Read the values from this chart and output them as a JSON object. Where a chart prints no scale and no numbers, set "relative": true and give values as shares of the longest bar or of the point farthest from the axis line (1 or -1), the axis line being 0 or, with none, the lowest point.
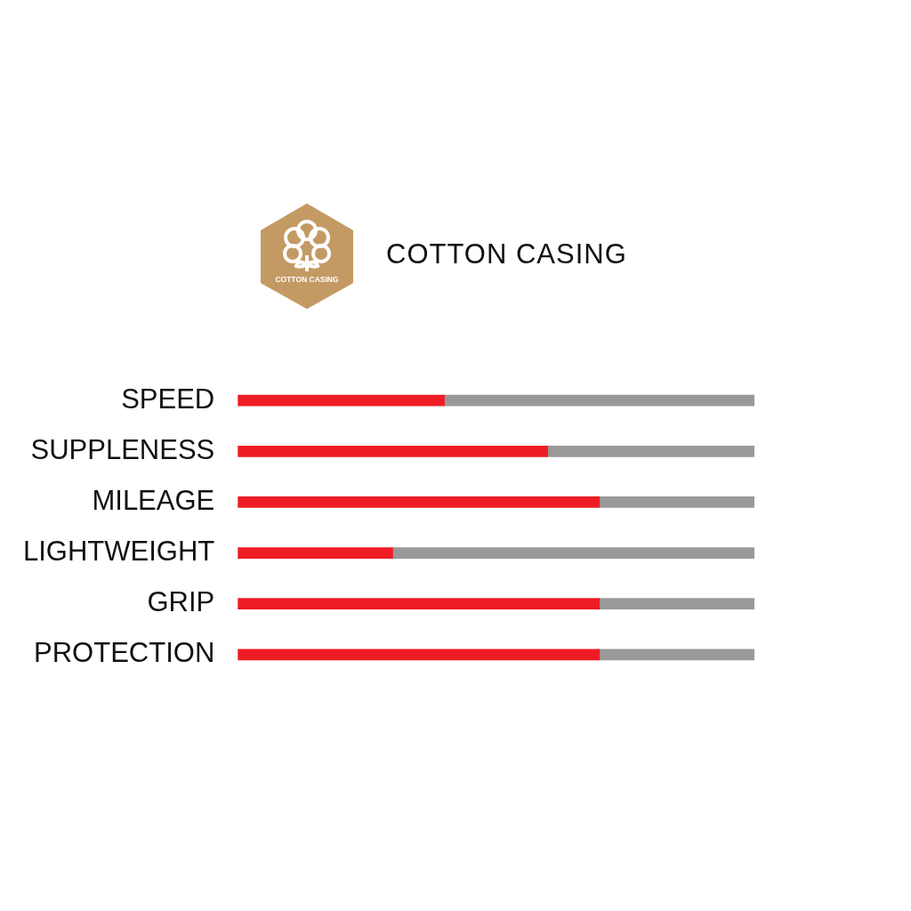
{
  "chart_data": {
    "type": "bar",
    "title": "COTTON CASING",
    "annotations": [
      "COTTON CASING"
    ],
    "categories": [
      "SPEED",
      "SUPPLENESS",
      "MILEAGE",
      "LIGHTWEIGHT",
      "GRIP",
      "PROTECTION"
    ],
    "orientation": "horizontal",
    "stacked": true,
    "relative": true,
    "legend": false,
    "grid": false,
    "tick_labels": "y",
    "series": [
      {
        "color": "#ee1c25",
        "values": [
          0.4,
          0.6,
          0.7,
          0.3,
          0.7,
          0.7
        ]
      },
      {
        "color": "#999999",
        "values": [
          0.6,
          0.4,
          0.3,
          0.7,
          0.3,
          0.3
        ]
      }
    ]
  }
}
